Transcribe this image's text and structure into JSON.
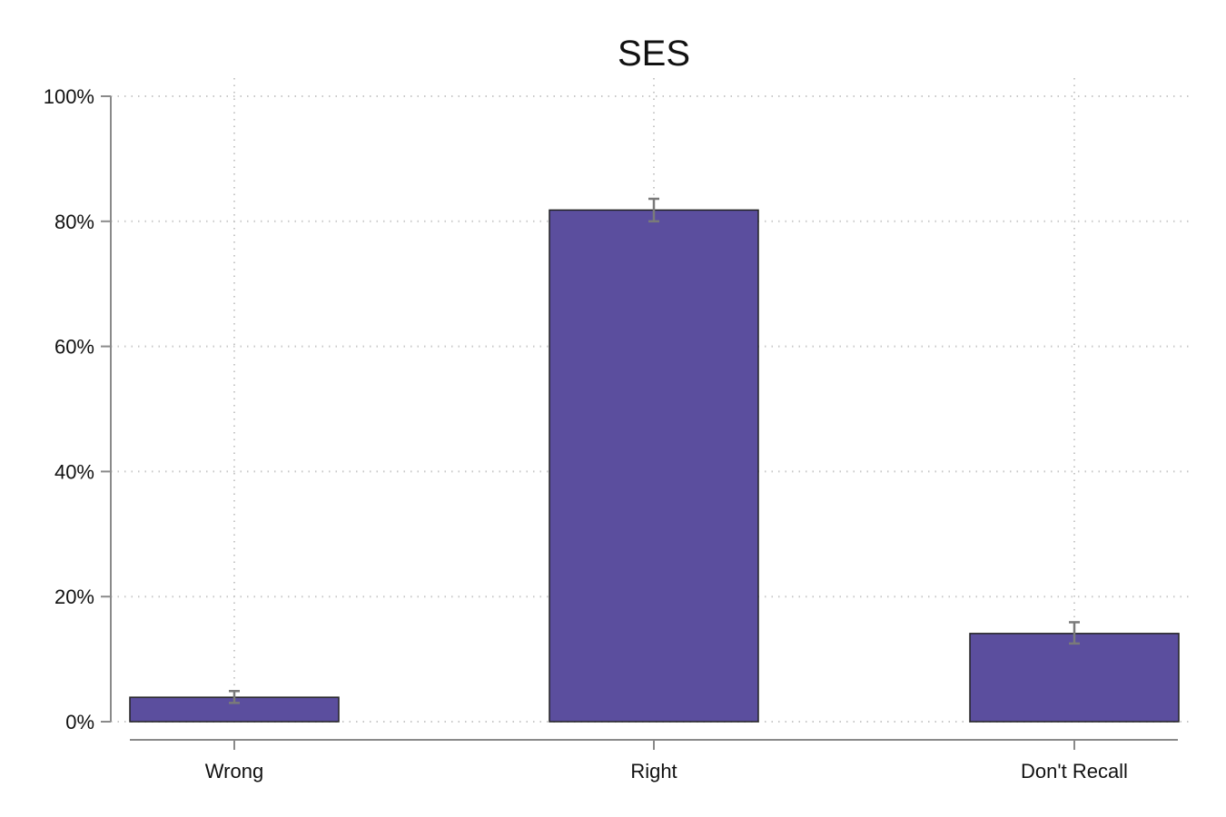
{
  "chart_data": {
    "type": "bar",
    "title": "SES",
    "xlabel": "",
    "ylabel": "",
    "categories": [
      "Wrong",
      "Right",
      "Don't Recall"
    ],
    "values": [
      3.9,
      81.8,
      14.1
    ],
    "error_low": [
      3.0,
      80.0,
      12.5
    ],
    "error_high": [
      4.9,
      83.6,
      15.9
    ],
    "ylim": [
      0,
      100
    ],
    "yticks": [
      0,
      20,
      40,
      60,
      80,
      100
    ],
    "ytick_labels": [
      "0%",
      "20%",
      "40%",
      "60%",
      "80%",
      "100%"
    ],
    "bar_color": "#5b4e9e",
    "grid": true,
    "legend": "none"
  }
}
